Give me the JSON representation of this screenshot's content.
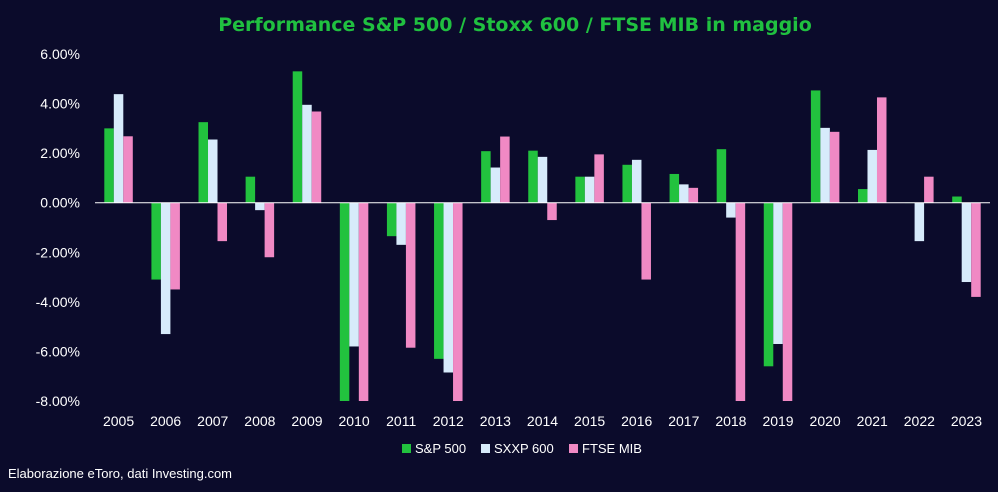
{
  "colors": {
    "background": "#0b0b2b",
    "title": "#20c040",
    "text": "#ffffff",
    "axis": "#ffffff",
    "sp500": "#22c23e",
    "sxxp600": "#d7ebfb",
    "ftsemib": "#f089c4"
  },
  "source": "Elaborazione eToro, dati Investing.com",
  "chart_data": {
    "type": "bar",
    "title": "Performance S&P 500 / Stoxx 600 / FTSE MIB in maggio",
    "xlabel": "",
    "ylabel": "",
    "ylim": [
      -8,
      6
    ],
    "yticks": [
      6,
      4,
      2,
      0,
      -2,
      -4,
      -6,
      -8
    ],
    "ytick_labels": [
      "6.00%",
      "4.00%",
      "2.00%",
      "0.00%",
      "-2.00%",
      "-4.00%",
      "-6.00%",
      "-8.00%"
    ],
    "grid": false,
    "legend_position": "bottom",
    "categories": [
      "2005",
      "2006",
      "2007",
      "2008",
      "2009",
      "2010",
      "2011",
      "2012",
      "2013",
      "2014",
      "2015",
      "2016",
      "2017",
      "2018",
      "2019",
      "2020",
      "2021",
      "2022",
      "2023"
    ],
    "series": [
      {
        "name": "S&P 500",
        "color_key": "sp500",
        "values": [
          3.0,
          -3.1,
          3.25,
          1.05,
          5.3,
          -8.2,
          -1.35,
          -6.3,
          2.08,
          2.1,
          1.05,
          1.53,
          1.16,
          2.16,
          -6.6,
          4.53,
          0.55,
          0.01,
          0.25
        ]
      },
      {
        "name": "SXXP 600",
        "color_key": "sxxp600",
        "values": [
          4.38,
          -5.3,
          2.55,
          -0.3,
          3.95,
          -5.8,
          -1.7,
          -6.85,
          1.42,
          1.85,
          1.05,
          1.73,
          0.74,
          -0.6,
          -5.7,
          3.02,
          2.13,
          -1.55,
          -3.2
        ]
      },
      {
        "name": "FTSE MIB",
        "color_key": "ftsemib",
        "values": [
          2.68,
          -3.5,
          -1.55,
          -2.2,
          3.68,
          -8.2,
          -5.85,
          -8.2,
          2.67,
          -0.7,
          1.95,
          -3.1,
          0.6,
          -8.2,
          -8.2,
          2.86,
          4.25,
          1.05,
          -3.8
        ]
      }
    ]
  }
}
